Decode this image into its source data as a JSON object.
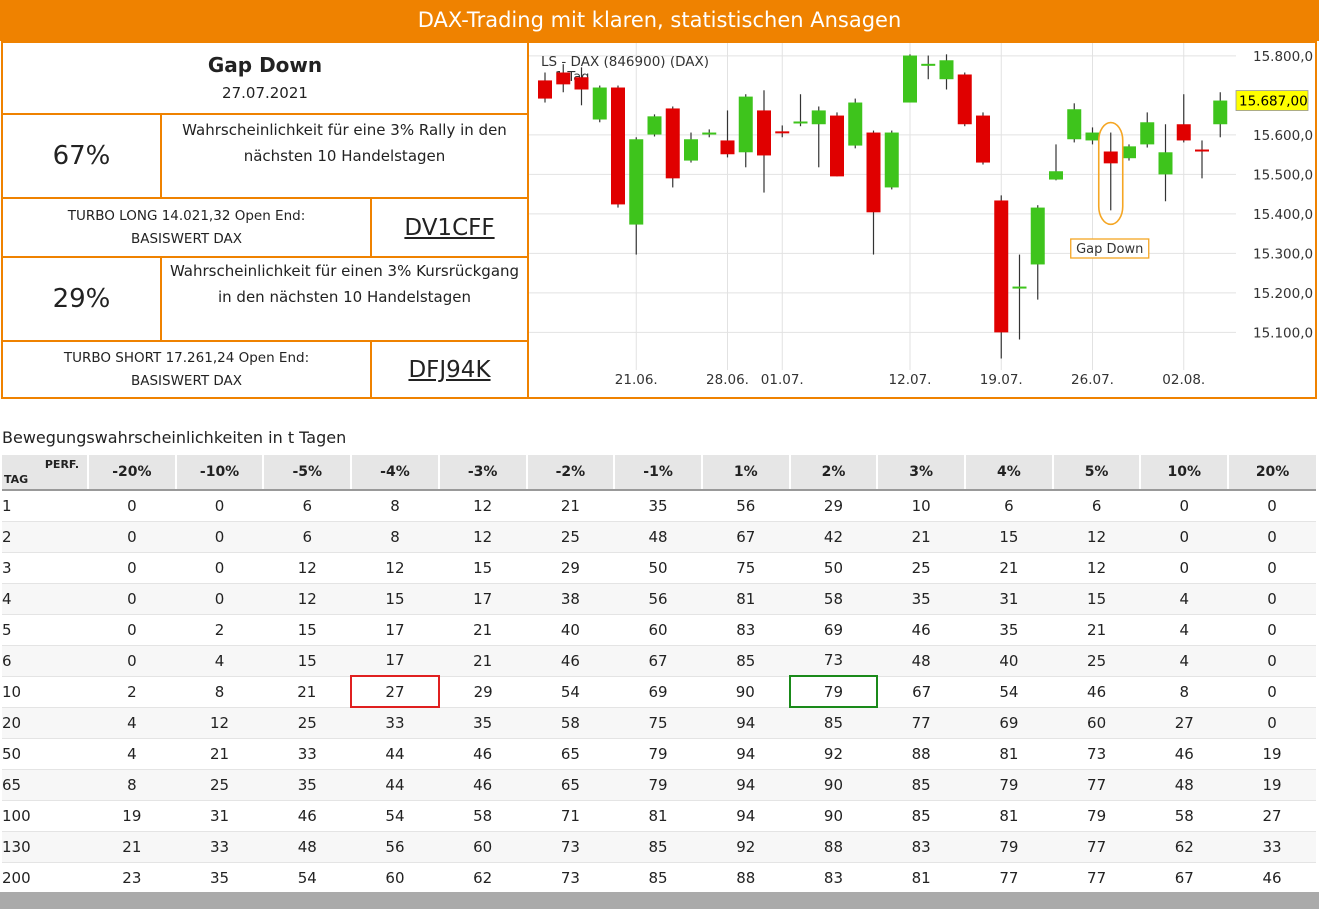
{
  "header": {
    "title": "DAX-Trading mit klaren, statistischen Ansagen"
  },
  "signal": {
    "title": "Gap Down",
    "date": "27.07.2021"
  },
  "long": {
    "probability": "67%",
    "text": [
      "Wahrscheinlichkeit für eine 3% Rally in den",
      "nächsten 10 Handelstagen"
    ],
    "product": [
      "TURBO LONG 14.021,32 Open End:",
      "BASISWERT DAX"
    ],
    "wkn": "DV1CFF"
  },
  "short": {
    "probability": "29%",
    "text": [
      "Wahrscheinlichkeit für einen 3% Kursrückgang",
      "in den nächsten 10 Handelstagen"
    ],
    "product": [
      "TURBO SHORT 17.261,24 Open End:",
      "BASISWERT DAX"
    ],
    "wkn": "DFJ94K"
  },
  "chart_data": {
    "type": "candlestick",
    "title": "LS - DAX (846900) (DAX)",
    "subtitle": "1 Tag",
    "annotation": "Gap Down",
    "categories": [
      null,
      null,
      null,
      null,
      null,
      "21.06.",
      null,
      null,
      null,
      null,
      "28.06.",
      null,
      null,
      "01.07.",
      null,
      null,
      null,
      null,
      null,
      null,
      "12.07.",
      null,
      null,
      null,
      null,
      "19.07.",
      null,
      null,
      null,
      null,
      "26.07.",
      null,
      null,
      null,
      null,
      "02.08.",
      null,
      null
    ],
    "open": [
      15738,
      15758,
      15746,
      15639,
      15720,
      15373,
      15601,
      15667,
      15535,
      15601,
      15586,
      15556,
      15662,
      15609,
      15629,
      15627,
      15649,
      15573,
      15606,
      15467,
      15682,
      15775,
      15741,
      15753,
      15649,
      15434,
      15211,
      15272,
      15487,
      15589,
      15586,
      15558,
      15541,
      15576,
      15500,
      15627,
      15563,
      15627
    ],
    "high": [
      15758,
      15779,
      15771,
      15725,
      15725,
      15594,
      15652,
      15672,
      15606,
      15614,
      15662,
      15703,
      15713,
      15624,
      15703,
      15672,
      15657,
      15692,
      15611,
      15611,
      15804,
      15801,
      15804,
      15758,
      15657,
      15447,
      15297,
      15422,
      15576,
      15680,
      15619,
      15606,
      15576,
      15657,
      15627,
      15703,
      15586,
      15708
    ],
    "low": [
      15682,
      15708,
      15675,
      15632,
      15416,
      15297,
      15596,
      15467,
      15530,
      15594,
      15543,
      15518,
      15454,
      15594,
      15622,
      15518,
      15495,
      15566,
      15297,
      15462,
      15682,
      15741,
      15715,
      15622,
      15525,
      15034,
      15082,
      15183,
      15485,
      15581,
      15576,
      15409,
      15535,
      15568,
      15432,
      15581,
      15490,
      15594
    ],
    "close": [
      15692,
      15728,
      15715,
      15720,
      15424,
      15589,
      15647,
      15490,
      15589,
      15606,
      15551,
      15697,
      15548,
      15604,
      15634,
      15662,
      15495,
      15682,
      15404,
      15606,
      15801,
      15780,
      15789,
      15627,
      15530,
      15100,
      15216,
      15416,
      15508,
      15665,
      15606,
      15528,
      15571,
      15632,
      15556,
      15586,
      15558,
      15687
    ],
    "up_color": "#3ec41c",
    "down_color": "#e00000",
    "last_price": {
      "value": 15687,
      "label": "15.687,00"
    },
    "ylim": [
      15025,
      15815
    ],
    "yticks": [
      {
        "value": 15100,
        "label": "15.100,0"
      },
      {
        "value": 15200,
        "label": "15.200,0"
      },
      {
        "value": 15300,
        "label": "15.300,0"
      },
      {
        "value": 15400,
        "label": "15.400,0"
      },
      {
        "value": 15500,
        "label": "15.500,0"
      },
      {
        "value": 15600,
        "label": "15.600,0"
      },
      {
        "value": 15800,
        "label": "15.800,0"
      }
    ],
    "grid": true
  },
  "table": {
    "caption": "Bewegungswahrscheinlichkeiten in t Tagen",
    "corner_top": "PERF.",
    "corner_bottom": "TAG",
    "columns": [
      "-20%",
      "-10%",
      "-5%",
      "-4%",
      "-3%",
      "-2%",
      "-1%",
      "1%",
      "2%",
      "3%",
      "4%",
      "5%",
      "10%",
      "20%"
    ],
    "rows": [
      [
        1,
        0,
        0,
        6,
        8,
        12,
        21,
        35,
        56,
        29,
        10,
        6,
        6,
        0,
        0
      ],
      [
        2,
        0,
        0,
        6,
        8,
        12,
        25,
        48,
        67,
        42,
        21,
        15,
        12,
        0,
        0
      ],
      [
        3,
        0,
        0,
        12,
        12,
        15,
        29,
        50,
        75,
        50,
        25,
        21,
        12,
        0,
        0
      ],
      [
        4,
        0,
        0,
        12,
        15,
        17,
        38,
        56,
        81,
        58,
        35,
        31,
        15,
        4,
        0
      ],
      [
        5,
        0,
        2,
        15,
        17,
        21,
        40,
        60,
        83,
        69,
        46,
        35,
        21,
        4,
        0
      ],
      [
        6,
        0,
        4,
        15,
        17,
        21,
        46,
        67,
        85,
        73,
        48,
        40,
        25,
        4,
        0
      ],
      [
        10,
        2,
        8,
        21,
        27,
        29,
        54,
        69,
        90,
        79,
        67,
        54,
        46,
        8,
        0
      ],
      [
        20,
        4,
        12,
        25,
        33,
        35,
        58,
        75,
        94,
        85,
        77,
        69,
        60,
        27,
        0
      ],
      [
        50,
        4,
        21,
        33,
        44,
        46,
        65,
        79,
        94,
        92,
        88,
        81,
        73,
        46,
        19
      ],
      [
        65,
        8,
        25,
        35,
        44,
        46,
        65,
        79,
        94,
        90,
        85,
        79,
        77,
        48,
        19
      ],
      [
        100,
        19,
        31,
        46,
        54,
        58,
        71,
        81,
        94,
        90,
        85,
        81,
        79,
        58,
        27
      ],
      [
        130,
        21,
        33,
        48,
        56,
        60,
        73,
        85,
        92,
        88,
        83,
        79,
        77,
        62,
        33
      ],
      [
        200,
        23,
        35,
        54,
        60,
        62,
        73,
        85,
        88,
        83,
        81,
        77,
        77,
        67,
        46
      ]
    ]
  }
}
